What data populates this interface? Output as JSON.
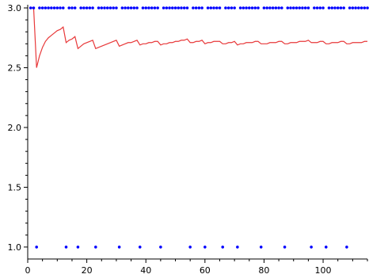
{
  "chart_data": {
    "type": "scatter+line",
    "title": "",
    "xlabel": "",
    "ylabel": "",
    "xlim": [
      0,
      115
    ],
    "ylim": [
      0.9,
      3.0
    ],
    "x_ticks": [
      0,
      20,
      40,
      60,
      80,
      100
    ],
    "y_ticks": [
      1.0,
      1.5,
      2.0,
      2.5,
      3.0
    ],
    "x_tick_labels": [
      "0",
      "20",
      "40",
      "60",
      "80",
      "100"
    ],
    "y_tick_labels": [
      "1.0",
      "1.5",
      "2.0",
      "2.5",
      "3.0"
    ],
    "grid": false,
    "legend": "none",
    "colors": {
      "points": "#0000ff",
      "line": "#e8393a",
      "axis": "#000000"
    },
    "series": [
      {
        "type": "scatter",
        "values_note": "",
        "points": [
          [
            1,
            3.0
          ],
          [
            2,
            3.0
          ],
          [
            3,
            1.0
          ],
          [
            4,
            3.0
          ],
          [
            5,
            3.0
          ],
          [
            6,
            3.0
          ],
          [
            7,
            3.0
          ],
          [
            8,
            3.0
          ],
          [
            9,
            3.0
          ],
          [
            10,
            3.0
          ],
          [
            11,
            3.0
          ],
          [
            12,
            3.0
          ],
          [
            13,
            1.0
          ],
          [
            14,
            3.0
          ],
          [
            15,
            3.0
          ],
          [
            16,
            3.0
          ],
          [
            17,
            1.0
          ],
          [
            18,
            3.0
          ],
          [
            19,
            3.0
          ],
          [
            20,
            3.0
          ],
          [
            21,
            3.0
          ],
          [
            22,
            3.0
          ],
          [
            23,
            1.0
          ],
          [
            24,
            3.0
          ],
          [
            25,
            3.0
          ],
          [
            26,
            3.0
          ],
          [
            27,
            3.0
          ],
          [
            28,
            3.0
          ],
          [
            29,
            3.0
          ],
          [
            30,
            3.0
          ],
          [
            31,
            1.0
          ],
          [
            32,
            3.0
          ],
          [
            33,
            3.0
          ],
          [
            34,
            3.0
          ],
          [
            35,
            3.0
          ],
          [
            36,
            3.0
          ],
          [
            37,
            3.0
          ],
          [
            38,
            1.0
          ],
          [
            39,
            3.0
          ],
          [
            40,
            3.0
          ],
          [
            41,
            3.0
          ],
          [
            42,
            3.0
          ],
          [
            43,
            3.0
          ],
          [
            44,
            3.0
          ],
          [
            45,
            1.0
          ],
          [
            46,
            3.0
          ],
          [
            47,
            3.0
          ],
          [
            48,
            3.0
          ],
          [
            49,
            3.0
          ],
          [
            50,
            3.0
          ],
          [
            51,
            3.0
          ],
          [
            52,
            3.0
          ],
          [
            53,
            3.0
          ],
          [
            54,
            3.0
          ],
          [
            55,
            1.0
          ],
          [
            56,
            3.0
          ],
          [
            57,
            3.0
          ],
          [
            58,
            3.0
          ],
          [
            59,
            3.0
          ],
          [
            60,
            1.0
          ],
          [
            61,
            3.0
          ],
          [
            62,
            3.0
          ],
          [
            63,
            3.0
          ],
          [
            64,
            3.0
          ],
          [
            65,
            3.0
          ],
          [
            66,
            1.0
          ],
          [
            67,
            3.0
          ],
          [
            68,
            3.0
          ],
          [
            69,
            3.0
          ],
          [
            70,
            3.0
          ],
          [
            71,
            1.0
          ],
          [
            72,
            3.0
          ],
          [
            73,
            3.0
          ],
          [
            74,
            3.0
          ],
          [
            75,
            3.0
          ],
          [
            76,
            3.0
          ],
          [
            77,
            3.0
          ],
          [
            78,
            3.0
          ],
          [
            79,
            1.0
          ],
          [
            80,
            3.0
          ],
          [
            81,
            3.0
          ],
          [
            82,
            3.0
          ],
          [
            83,
            3.0
          ],
          [
            84,
            3.0
          ],
          [
            85,
            3.0
          ],
          [
            86,
            3.0
          ],
          [
            87,
            1.0
          ],
          [
            88,
            3.0
          ],
          [
            89,
            3.0
          ],
          [
            90,
            3.0
          ],
          [
            91,
            3.0
          ],
          [
            92,
            3.0
          ],
          [
            93,
            3.0
          ],
          [
            94,
            3.0
          ],
          [
            95,
            3.0
          ],
          [
            96,
            1.0
          ],
          [
            97,
            3.0
          ],
          [
            98,
            3.0
          ],
          [
            99,
            3.0
          ],
          [
            100,
            3.0
          ],
          [
            101,
            1.0
          ],
          [
            102,
            3.0
          ],
          [
            103,
            3.0
          ],
          [
            104,
            3.0
          ],
          [
            105,
            3.0
          ],
          [
            106,
            3.0
          ],
          [
            107,
            3.0
          ],
          [
            108,
            1.0
          ],
          [
            109,
            3.0
          ],
          [
            110,
            3.0
          ],
          [
            111,
            3.0
          ],
          [
            112,
            3.0
          ],
          [
            113,
            3.0
          ],
          [
            114,
            3.0
          ],
          [
            115,
            3.0
          ]
        ]
      },
      {
        "type": "line",
        "points": [
          [
            1,
            3.0
          ],
          [
            2,
            3.0
          ],
          [
            3,
            2.5
          ],
          [
            4,
            2.6
          ],
          [
            5,
            2.67
          ],
          [
            6,
            2.72
          ],
          [
            7,
            2.75
          ],
          [
            8,
            2.77
          ],
          [
            9,
            2.79
          ],
          [
            10,
            2.81
          ],
          [
            11,
            2.82
          ],
          [
            12,
            2.84
          ],
          [
            13,
            2.71
          ],
          [
            14,
            2.73
          ],
          [
            15,
            2.74
          ],
          [
            16,
            2.76
          ],
          [
            17,
            2.66
          ],
          [
            18,
            2.68
          ],
          [
            19,
            2.7
          ],
          [
            20,
            2.71
          ],
          [
            21,
            2.72
          ],
          [
            22,
            2.73
          ],
          [
            23,
            2.66
          ],
          [
            24,
            2.67
          ],
          [
            25,
            2.68
          ],
          [
            26,
            2.69
          ],
          [
            27,
            2.7
          ],
          [
            28,
            2.71
          ],
          [
            29,
            2.72
          ],
          [
            30,
            2.73
          ],
          [
            31,
            2.68
          ],
          [
            32,
            2.69
          ],
          [
            33,
            2.7
          ],
          [
            34,
            2.71
          ],
          [
            35,
            2.71
          ],
          [
            36,
            2.72
          ],
          [
            37,
            2.73
          ],
          [
            38,
            2.69
          ],
          [
            39,
            2.7
          ],
          [
            40,
            2.7
          ],
          [
            41,
            2.71
          ],
          [
            42,
            2.71
          ],
          [
            43,
            2.72
          ],
          [
            44,
            2.72
          ],
          [
            45,
            2.69
          ],
          [
            46,
            2.7
          ],
          [
            47,
            2.7
          ],
          [
            48,
            2.71
          ],
          [
            49,
            2.71
          ],
          [
            50,
            2.72
          ],
          [
            51,
            2.72
          ],
          [
            52,
            2.73
          ],
          [
            53,
            2.73
          ],
          [
            54,
            2.74
          ],
          [
            55,
            2.71
          ],
          [
            56,
            2.71
          ],
          [
            57,
            2.72
          ],
          [
            58,
            2.72
          ],
          [
            59,
            2.73
          ],
          [
            60,
            2.7
          ],
          [
            61,
            2.71
          ],
          [
            62,
            2.71
          ],
          [
            63,
            2.72
          ],
          [
            64,
            2.72
          ],
          [
            65,
            2.72
          ],
          [
            66,
            2.7
          ],
          [
            67,
            2.7
          ],
          [
            68,
            2.71
          ],
          [
            69,
            2.71
          ],
          [
            70,
            2.72
          ],
          [
            71,
            2.69
          ],
          [
            72,
            2.7
          ],
          [
            73,
            2.7
          ],
          [
            74,
            2.71
          ],
          [
            75,
            2.71
          ],
          [
            76,
            2.71
          ],
          [
            77,
            2.72
          ],
          [
            78,
            2.72
          ],
          [
            79,
            2.7
          ],
          [
            80,
            2.7
          ],
          [
            81,
            2.7
          ],
          [
            82,
            2.71
          ],
          [
            83,
            2.71
          ],
          [
            84,
            2.71
          ],
          [
            85,
            2.72
          ],
          [
            86,
            2.72
          ],
          [
            87,
            2.7
          ],
          [
            88,
            2.7
          ],
          [
            89,
            2.71
          ],
          [
            90,
            2.71
          ],
          [
            91,
            2.71
          ],
          [
            92,
            2.72
          ],
          [
            93,
            2.72
          ],
          [
            94,
            2.72
          ],
          [
            95,
            2.73
          ],
          [
            96,
            2.71
          ],
          [
            97,
            2.71
          ],
          [
            98,
            2.71
          ],
          [
            99,
            2.72
          ],
          [
            100,
            2.72
          ],
          [
            101,
            2.7
          ],
          [
            102,
            2.7
          ],
          [
            103,
            2.71
          ],
          [
            104,
            2.71
          ],
          [
            105,
            2.71
          ],
          [
            106,
            2.72
          ],
          [
            107,
            2.72
          ],
          [
            108,
            2.7
          ],
          [
            109,
            2.7
          ],
          [
            110,
            2.71
          ],
          [
            111,
            2.71
          ],
          [
            112,
            2.71
          ],
          [
            113,
            2.71
          ],
          [
            114,
            2.72
          ],
          [
            115,
            2.72
          ]
        ]
      }
    ]
  }
}
